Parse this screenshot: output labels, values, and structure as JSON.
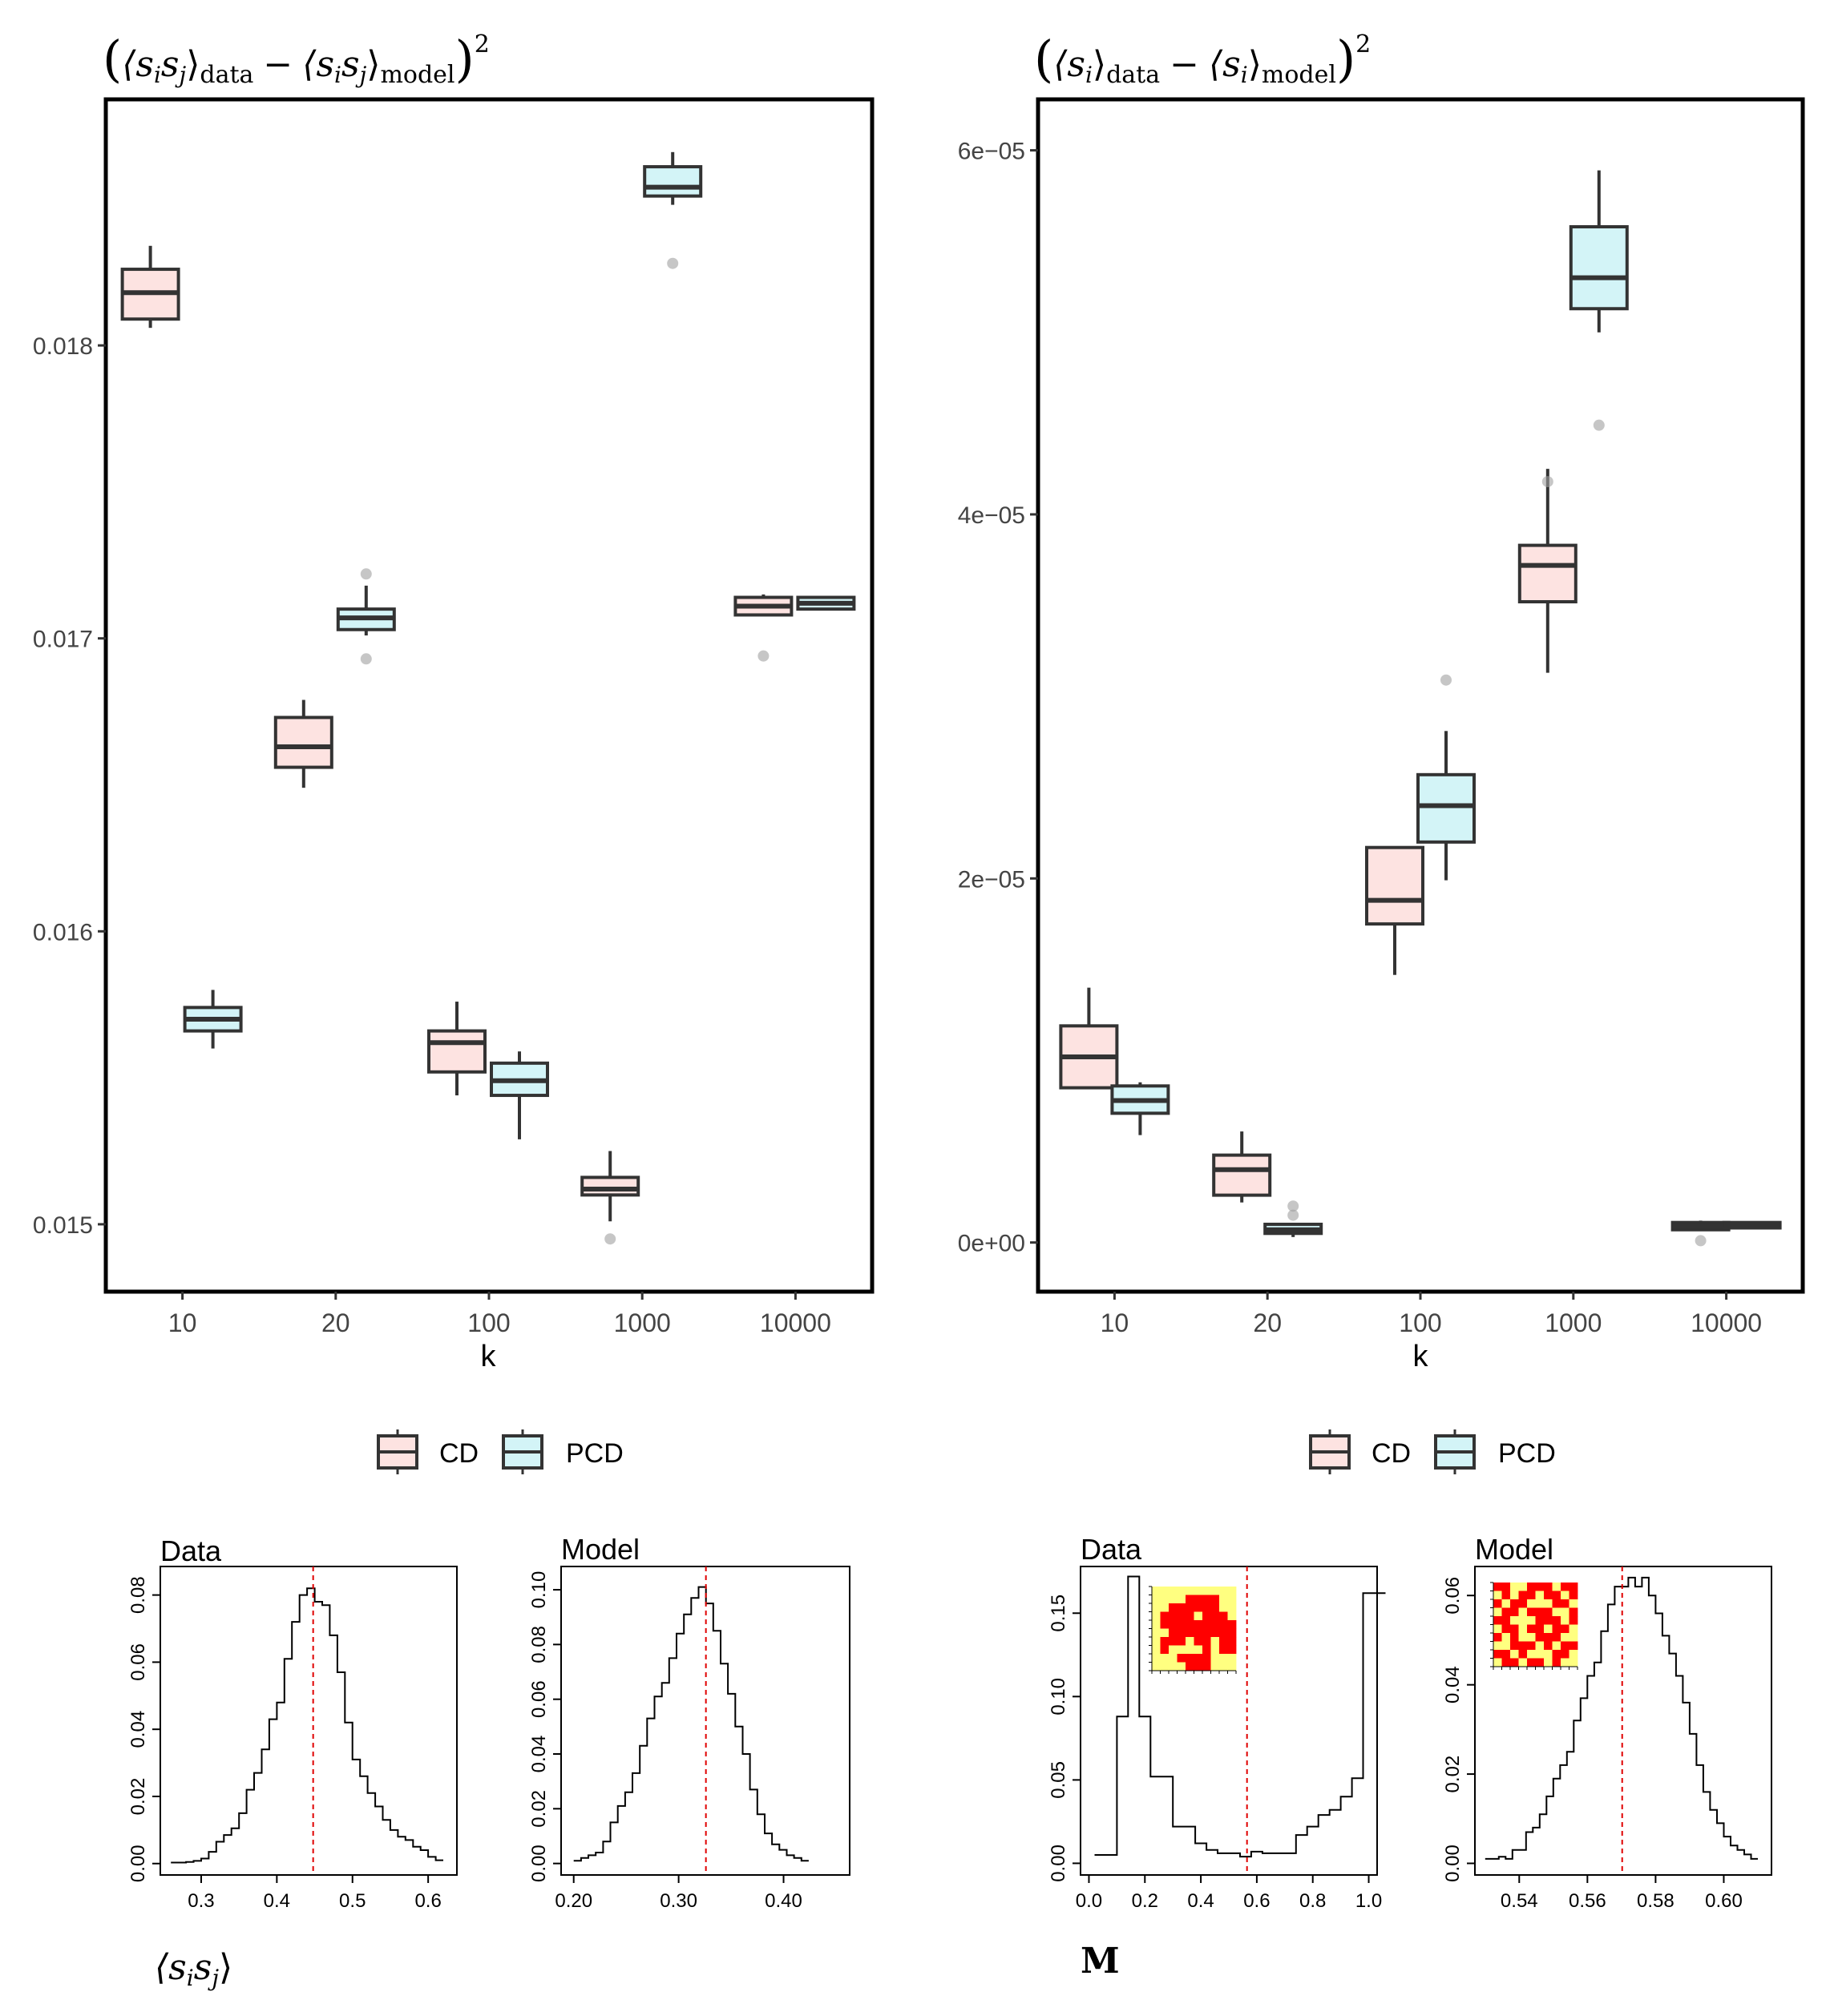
{
  "chart_data": [
    {
      "id": "bp1",
      "type": "boxplot",
      "title": "((s_i s_j)_data − (s_i s_j)_model)^2",
      "title_parts": {
        "open": "(",
        "lhs": "⟨s",
        "lhs_sub1": "i",
        "lhs_mid": "s",
        "lhs_sub2": "j",
        "lhs_close": "⟩",
        "lhs_label": "data",
        "minus": "−",
        "rhs": "⟨s",
        "rhs_sub1": "i",
        "rhs_mid": "s",
        "rhs_sub2": "j",
        "rhs_close": "⟩",
        "rhs_label": "model",
        "close": ")",
        "power": "2"
      },
      "xlabel": "k",
      "categories": [
        "10",
        "20",
        "100",
        "1000",
        "10000"
      ],
      "ylim": [
        0.01477,
        0.01884
      ],
      "yticks": [
        0.015,
        0.016,
        0.017,
        0.018
      ],
      "ytick_labels": [
        "0.015",
        "0.016",
        "0.017",
        "0.018"
      ],
      "legend": [
        "CD",
        "PCD"
      ],
      "colors": {
        "CD": "#fde3e1",
        "PCD": "#d3f4f7",
        "line": "#333333",
        "outlier": "#a0a0a0"
      },
      "series": [
        {
          "name": "CD",
          "boxes": [
            {
              "cat": "10",
              "q1": 0.01809,
              "med": 0.01818,
              "q3": 0.01826,
              "lo": 0.01806,
              "hi": 0.01834,
              "outliers": []
            },
            {
              "cat": "20",
              "q1": 0.01656,
              "med": 0.01663,
              "q3": 0.01673,
              "lo": 0.01649,
              "hi": 0.01679,
              "outliers": []
            },
            {
              "cat": "100",
              "q1": 0.01552,
              "med": 0.01562,
              "q3": 0.01566,
              "lo": 0.01544,
              "hi": 0.01576,
              "outliers": []
            },
            {
              "cat": "1000",
              "q1": 0.0151,
              "med": 0.01512,
              "q3": 0.01516,
              "lo": 0.01501,
              "hi": 0.01525,
              "outliers": [
                0.01495
              ]
            },
            {
              "cat": "10000",
              "q1": 0.01708,
              "med": 0.01711,
              "q3": 0.01714,
              "lo": 0.01708,
              "hi": 0.01715,
              "outliers": [
                0.01694
              ]
            }
          ]
        },
        {
          "name": "PCD",
          "boxes": [
            {
              "cat": "10",
              "q1": 0.01566,
              "med": 0.0157,
              "q3": 0.01574,
              "lo": 0.0156,
              "hi": 0.0158,
              "outliers": []
            },
            {
              "cat": "20",
              "q1": 0.01703,
              "med": 0.01707,
              "q3": 0.0171,
              "lo": 0.01701,
              "hi": 0.01718,
              "outliers": [
                0.01722,
                0.01693
              ]
            },
            {
              "cat": "100",
              "q1": 0.01544,
              "med": 0.01549,
              "q3": 0.01555,
              "lo": 0.01529,
              "hi": 0.01559,
              "outliers": []
            },
            {
              "cat": "1000",
              "q1": 0.01851,
              "med": 0.01854,
              "q3": 0.01861,
              "lo": 0.01848,
              "hi": 0.01866,
              "outliers": [
                0.01828
              ]
            },
            {
              "cat": "10000",
              "q1": 0.0171,
              "med": 0.01712,
              "q3": 0.01714,
              "lo": 0.0171,
              "hi": 0.01714,
              "outliers": []
            }
          ]
        }
      ]
    },
    {
      "id": "bp2",
      "type": "boxplot",
      "title": "((s_i)_data − (s_i)_model)^2",
      "title_parts": {
        "open": "(",
        "lhs": "⟨s",
        "lhs_sub1": "i",
        "lhs_close": "⟩",
        "lhs_label": "data",
        "minus": "−",
        "rhs": "⟨s",
        "rhs_sub1": "i",
        "rhs_close": "⟩",
        "rhs_label": "model",
        "close": ")",
        "power": "2"
      },
      "xlabel": "k",
      "categories": [
        "10",
        "20",
        "100",
        "1000",
        "10000"
      ],
      "ylim": [
        -2.7e-06,
        6.28e-05
      ],
      "yticks": [
        0,
        2e-05,
        4e-05,
        6e-05
      ],
      "ytick_labels": [
        "0e+00",
        "2e−05",
        "4e−05",
        "6e−05"
      ],
      "legend": [
        "CD",
        "PCD"
      ],
      "colors": {
        "CD": "#fde3e1",
        "PCD": "#d3f4f7",
        "line": "#333333",
        "outlier": "#a0a0a0"
      },
      "series": [
        {
          "name": "CD",
          "boxes": [
            {
              "cat": "10",
              "q1": 8.5e-06,
              "med": 1.02e-05,
              "q3": 1.19e-05,
              "lo": 8.5e-06,
              "hi": 1.4e-05,
              "outliers": []
            },
            {
              "cat": "20",
              "q1": 2.6e-06,
              "med": 4e-06,
              "q3": 4.8e-06,
              "lo": 2.2e-06,
              "hi": 6.1e-06,
              "outliers": []
            },
            {
              "cat": "100",
              "q1": 1.75e-05,
              "med": 1.88e-05,
              "q3": 2.17e-05,
              "lo": 1.47e-05,
              "hi": 2.17e-05,
              "outliers": []
            },
            {
              "cat": "1000",
              "q1": 3.52e-05,
              "med": 3.72e-05,
              "q3": 3.83e-05,
              "lo": 3.13e-05,
              "hi": 4.25e-05,
              "outliers": [
                4.18e-05
              ]
            },
            {
              "cat": "10000",
              "q1": 7e-07,
              "med": 9e-07,
              "q3": 1.1e-06,
              "lo": 7e-07,
              "hi": 1.2e-06,
              "outliers": [
                1e-07
              ]
            }
          ]
        },
        {
          "name": "PCD",
          "boxes": [
            {
              "cat": "10",
              "q1": 7.1e-06,
              "med": 7.8e-06,
              "q3": 8.6e-06,
              "lo": 5.9e-06,
              "hi": 8.8e-06,
              "outliers": []
            },
            {
              "cat": "20",
              "q1": 5e-07,
              "med": 7e-07,
              "q3": 1e-06,
              "lo": 3e-07,
              "hi": 1e-06,
              "outliers": [
                1.5e-06,
                2e-06
              ]
            },
            {
              "cat": "100",
              "q1": 2.2e-05,
              "med": 2.4e-05,
              "q3": 2.57e-05,
              "lo": 1.99e-05,
              "hi": 2.81e-05,
              "outliers": [
                3.09e-05
              ]
            },
            {
              "cat": "1000",
              "q1": 5.13e-05,
              "med": 5.3e-05,
              "q3": 5.58e-05,
              "lo": 5e-05,
              "hi": 5.89e-05,
              "outliers": [
                4.49e-05
              ]
            },
            {
              "cat": "10000",
              "q1": 8e-07,
              "med": 1e-06,
              "q3": 1.1e-06,
              "lo": 8e-07,
              "hi": 1.1e-06,
              "outliers": []
            }
          ]
        }
      ]
    },
    {
      "id": "h1",
      "type": "histogram",
      "title": "Data",
      "xlabel": "⟨s_i s_j⟩",
      "xlabel_parts": {
        "open": "⟨s",
        "sub1": "i",
        "mid": "s",
        "sub2": "j",
        "close": "⟩"
      },
      "xlim": [
        0.246,
        0.638
      ],
      "ylim": [
        -0.0034,
        0.0885
      ],
      "xticks": [
        0.3,
        0.4,
        0.5,
        0.6
      ],
      "xtick_labels": [
        "0.3",
        "0.4",
        "0.5",
        "0.6"
      ],
      "yticks": [
        0,
        0.02,
        0.04,
        0.06,
        0.08
      ],
      "ytick_labels": [
        "0.00",
        "0.02",
        "0.04",
        "0.06",
        "0.08"
      ],
      "mean": 0.448,
      "bin_start": 0.26,
      "bin_width": 0.01,
      "values": [
        0.0003,
        0.0003,
        0.0005,
        0.0008,
        0.0015,
        0.0035,
        0.0065,
        0.0085,
        0.0105,
        0.015,
        0.022,
        0.027,
        0.034,
        0.043,
        0.048,
        0.061,
        0.072,
        0.08,
        0.082,
        0.078,
        0.077,
        0.068,
        0.057,
        0.042,
        0.031,
        0.026,
        0.021,
        0.017,
        0.013,
        0.01,
        0.008,
        0.007,
        0.005,
        0.004,
        0.002,
        0.001
      ]
    },
    {
      "id": "h2",
      "type": "histogram",
      "title": "Model",
      "xlim": [
        0.188,
        0.463
      ],
      "ylim": [
        -0.0042,
        0.1085
      ],
      "xticks": [
        0.2,
        0.3,
        0.4
      ],
      "xtick_labels": [
        "0.20",
        "0.30",
        "0.40"
      ],
      "yticks": [
        0,
        0.02,
        0.04,
        0.06,
        0.08,
        0.1
      ],
      "ytick_labels": [
        "0.00",
        "0.02",
        "0.04",
        "0.06",
        "0.08",
        "0.10"
      ],
      "mean": 0.326,
      "bin_start": 0.2,
      "bin_width": 0.007,
      "values": [
        0.001,
        0.002,
        0.003,
        0.004,
        0.008,
        0.015,
        0.021,
        0.026,
        0.033,
        0.043,
        0.053,
        0.061,
        0.066,
        0.075,
        0.084,
        0.091,
        0.097,
        0.101,
        0.095,
        0.085,
        0.073,
        0.062,
        0.05,
        0.04,
        0.027,
        0.018,
        0.011,
        0.007,
        0.005,
        0.003,
        0.002,
        0.001
      ]
    },
    {
      "id": "h3",
      "type": "histogram",
      "title": "Data",
      "xlabel": "M",
      "xlim": [
        -0.03,
        1.03
      ],
      "ylim": [
        -0.007,
        0.178
      ],
      "xticks": [
        0,
        0.2,
        0.4,
        0.6,
        0.8,
        1.0
      ],
      "xtick_labels": [
        "0.0",
        "0.2",
        "0.4",
        "0.6",
        "0.8",
        "1.0"
      ],
      "yticks": [
        0,
        0.05,
        0.1,
        0.15
      ],
      "ytick_labels": [
        "0.00",
        "0.05",
        "0.10",
        "0.15"
      ],
      "mean": 0.565,
      "bin_start": 0.02,
      "bin_width": 0.04,
      "values": [
        0.005,
        0.005,
        0.088,
        0.172,
        0.088,
        0.052,
        0.052,
        0.022,
        0.022,
        0.012,
        0.008,
        0.006,
        0.006,
        0.004,
        0.007,
        0.006,
        0.006,
        0.006,
        0.017,
        0.022,
        0.029,
        0.032,
        0.04,
        0.051,
        0.162,
        0.162
      ]
    },
    {
      "id": "h4",
      "type": "histogram",
      "title": "Model",
      "xlim": [
        0.527,
        0.614
      ],
      "ylim": [
        -0.0026,
        0.0665
      ],
      "xticks": [
        0.54,
        0.56,
        0.58,
        0.6
      ],
      "xtick_labels": [
        "0.54",
        "0.56",
        "0.58",
        "0.60"
      ],
      "yticks": [
        0,
        0.02,
        0.04,
        0.06
      ],
      "ytick_labels": [
        "0.00",
        "0.02",
        "0.04",
        "0.06"
      ],
      "mean": 0.5702,
      "bin_start": 0.53,
      "bin_width": 0.002,
      "values": [
        0.001,
        0.001,
        0.0015,
        0.001,
        0.003,
        0.003,
        0.007,
        0.008,
        0.011,
        0.015,
        0.019,
        0.022,
        0.025,
        0.032,
        0.037,
        0.042,
        0.045,
        0.052,
        0.058,
        0.062,
        0.062,
        0.064,
        0.062,
        0.064,
        0.06,
        0.056,
        0.051,
        0.047,
        0.042,
        0.036,
        0.029,
        0.022,
        0.016,
        0.012,
        0.009,
        0.006,
        0.004,
        0.003,
        0.002,
        0.001
      ]
    }
  ],
  "insets": {
    "h3": {
      "colors": [
        "#ffff80",
        "#ff0000"
      ],
      "grid": [
        "0000000000",
        "0000111100",
        "0011111100",
        "0111101110",
        "0111111111",
        "0011111111",
        "0111011011",
        "0100001011",
        "0001111000",
        "0000111000"
      ]
    },
    "h4": {
      "colors": [
        "#ffff80",
        "#ff0000"
      ],
      "grid": [
        "1100111011",
        "0101101101",
        "1011000110",
        "0110111001",
        "1100011101",
        "0110110110",
        "1010011100",
        "0011101011",
        "1101000110",
        "0110110100"
      ]
    }
  }
}
